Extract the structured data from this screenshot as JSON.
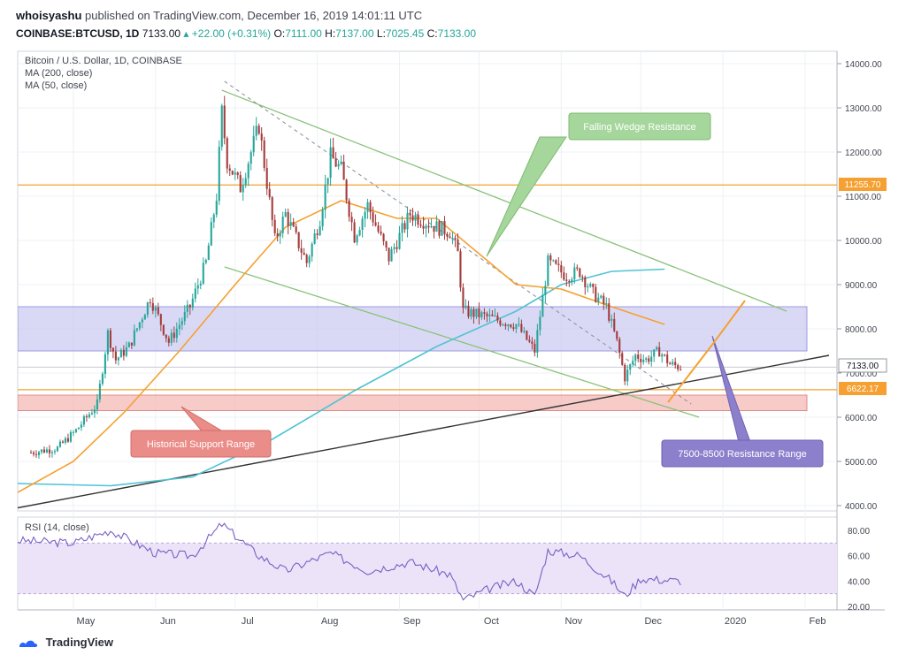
{
  "header": {
    "author": "whoisyashu",
    "published": "published on TradingView.com, December 16, 2019 14:01:11 UTC",
    "symbol": "COINBASE:BTCUSD, 1D",
    "last": "7133.00",
    "change": "▴ +22.00 (+0.31%)",
    "o_label": "O:",
    "o": "7111.00",
    "h_label": "H:",
    "h": "7137.00",
    "l_label": "L:",
    "l": "7025.45",
    "c_label": "C:",
    "c": "7133.00"
  },
  "legend": {
    "title": "Bitcoin / U.S. Dollar, 1D, COINBASE",
    "ma200": "MA (200, close)",
    "ma50": "MA (50, close)"
  },
  "annotations": {
    "falling_wedge": "Falling Wedge Resistance",
    "historical_support": "Historical Support Range",
    "resistance_range": "7500-8500 Resistance Range"
  },
  "price_tags": {
    "level_high": "11255.70",
    "current": "7133.00",
    "level_low": "6622.17"
  },
  "rsi_label": "RSI (14, close)",
  "footer": {
    "brand": "TradingView"
  },
  "colors": {
    "up": "#26a69a",
    "down": "#a33b3b",
    "ma50": "#f5a030",
    "ma200": "#4fc3d4",
    "green_line": "#8bc27a",
    "orange": "#f5a030",
    "purple_zone": "#c6c4ef",
    "red_zone": "#f3b9b6",
    "rsi_band": "#ece3f8",
    "rsi_line": "#7b5fc4"
  },
  "chart_data": {
    "type": "candlestick",
    "title": "Bitcoin / U.S. Dollar, 1D, COINBASE",
    "y_ticks": [
      4000,
      5000,
      6000,
      7000,
      8000,
      9000,
      10000,
      11000,
      12000,
      13000,
      14000
    ],
    "ylim": [
      3700,
      14500
    ],
    "x_ticks": [
      "May",
      "Jun",
      "Jul",
      "Aug",
      "Sep",
      "Oct",
      "Nov",
      "Dec",
      "2020",
      "Feb"
    ],
    "rsi_ticks": [
      20,
      40,
      60,
      80
    ],
    "rsi_band": [
      30,
      70
    ],
    "close_path": [
      {
        "x": "2019-04-15",
        "y": 5200
      },
      {
        "x": "2019-04-25",
        "y": 5300
      },
      {
        "x": "2019-05-02",
        "y": 5700
      },
      {
        "x": "2019-05-10",
        "y": 6300
      },
      {
        "x": "2019-05-14",
        "y": 7900
      },
      {
        "x": "2019-05-17",
        "y": 7300
      },
      {
        "x": "2019-05-22",
        "y": 7600
      },
      {
        "x": "2019-05-30",
        "y": 8700
      },
      {
        "x": "2019-06-06",
        "y": 7700
      },
      {
        "x": "2019-06-14",
        "y": 8500
      },
      {
        "x": "2019-06-20",
        "y": 9500
      },
      {
        "x": "2019-06-24",
        "y": 11000
      },
      {
        "x": "2019-06-26",
        "y": 12900
      },
      {
        "x": "2019-06-28",
        "y": 11800
      },
      {
        "x": "2019-07-03",
        "y": 11200
      },
      {
        "x": "2019-07-10",
        "y": 12600
      },
      {
        "x": "2019-07-16",
        "y": 10000
      },
      {
        "x": "2019-07-20",
        "y": 10600
      },
      {
        "x": "2019-07-28",
        "y": 9500
      },
      {
        "x": "2019-08-02",
        "y": 10500
      },
      {
        "x": "2019-08-06",
        "y": 11900
      },
      {
        "x": "2019-08-10",
        "y": 11600
      },
      {
        "x": "2019-08-15",
        "y": 10100
      },
      {
        "x": "2019-08-20",
        "y": 10800
      },
      {
        "x": "2019-08-28",
        "y": 9600
      },
      {
        "x": "2019-09-05",
        "y": 10600
      },
      {
        "x": "2019-09-15",
        "y": 10300
      },
      {
        "x": "2019-09-20",
        "y": 10200
      },
      {
        "x": "2019-09-23",
        "y": 9700
      },
      {
        "x": "2019-09-25",
        "y": 8400
      },
      {
        "x": "2019-10-02",
        "y": 8300
      },
      {
        "x": "2019-10-08",
        "y": 8200
      },
      {
        "x": "2019-10-15",
        "y": 8100
      },
      {
        "x": "2019-10-22",
        "y": 7500
      },
      {
        "x": "2019-10-25",
        "y": 8700
      },
      {
        "x": "2019-10-27",
        "y": 9500
      },
      {
        "x": "2019-11-03",
        "y": 9200
      },
      {
        "x": "2019-11-08",
        "y": 9300
      },
      {
        "x": "2019-11-13",
        "y": 8800
      },
      {
        "x": "2019-11-18",
        "y": 8500
      },
      {
        "x": "2019-11-22",
        "y": 7700
      },
      {
        "x": "2019-11-25",
        "y": 6900
      },
      {
        "x": "2019-11-29",
        "y": 7400
      },
      {
        "x": "2019-12-03",
        "y": 7300
      },
      {
        "x": "2019-12-08",
        "y": 7500
      },
      {
        "x": "2019-12-12",
        "y": 7200
      },
      {
        "x": "2019-12-16",
        "y": 7133
      }
    ],
    "ma50": [
      {
        "x": "2019-04-10",
        "y": 4300
      },
      {
        "x": "2019-05-01",
        "y": 5000
      },
      {
        "x": "2019-05-20",
        "y": 6100
      },
      {
        "x": "2019-06-10",
        "y": 7500
      },
      {
        "x": "2019-07-01",
        "y": 9000
      },
      {
        "x": "2019-07-20",
        "y": 10300
      },
      {
        "x": "2019-08-10",
        "y": 10900
      },
      {
        "x": "2019-08-31",
        "y": 10500
      },
      {
        "x": "2019-09-15",
        "y": 10500
      },
      {
        "x": "2019-10-01",
        "y": 9700
      },
      {
        "x": "2019-10-15",
        "y": 9000
      },
      {
        "x": "2019-11-01",
        "y": 8900
      },
      {
        "x": "2019-11-20",
        "y": 8500
      },
      {
        "x": "2019-12-10",
        "y": 8100
      }
    ],
    "ma200": [
      {
        "x": "2019-04-10",
        "y": 4500
      },
      {
        "x": "2019-05-15",
        "y": 4450
      },
      {
        "x": "2019-06-15",
        "y": 4650
      },
      {
        "x": "2019-07-15",
        "y": 5500
      },
      {
        "x": "2019-08-15",
        "y": 6600
      },
      {
        "x": "2019-09-15",
        "y": 7600
      },
      {
        "x": "2019-10-15",
        "y": 8400
      },
      {
        "x": "2019-11-01",
        "y": 9000
      },
      {
        "x": "2019-11-20",
        "y": 9300
      },
      {
        "x": "2019-12-10",
        "y": 9350
      }
    ],
    "rsi": [
      {
        "x": "2019-04-10",
        "y": 72
      },
      {
        "x": "2019-05-01",
        "y": 70
      },
      {
        "x": "2019-05-15",
        "y": 80
      },
      {
        "x": "2019-06-01",
        "y": 62
      },
      {
        "x": "2019-06-15",
        "y": 60
      },
      {
        "x": "2019-06-26",
        "y": 85
      },
      {
        "x": "2019-07-10",
        "y": 60
      },
      {
        "x": "2019-07-20",
        "y": 48
      },
      {
        "x": "2019-08-06",
        "y": 62
      },
      {
        "x": "2019-08-20",
        "y": 48
      },
      {
        "x": "2019-09-05",
        "y": 55
      },
      {
        "x": "2019-09-20",
        "y": 45
      },
      {
        "x": "2019-09-25",
        "y": 25
      },
      {
        "x": "2019-10-05",
        "y": 34
      },
      {
        "x": "2019-10-15",
        "y": 40
      },
      {
        "x": "2019-10-22",
        "y": 28
      },
      {
        "x": "2019-10-27",
        "y": 64
      },
      {
        "x": "2019-11-08",
        "y": 60
      },
      {
        "x": "2019-11-20",
        "y": 40
      },
      {
        "x": "2019-11-25",
        "y": 28
      },
      {
        "x": "2019-12-01",
        "y": 42
      },
      {
        "x": "2019-12-16",
        "y": 40
      }
    ],
    "horizontal_levels": [
      11255.7,
      6622.17
    ],
    "zones": {
      "resistance_range": [
        7500,
        8500
      ],
      "historical_support_range": [
        6150,
        6500
      ]
    }
  }
}
